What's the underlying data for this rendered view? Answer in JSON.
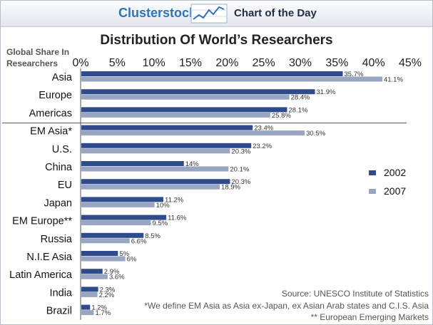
{
  "header": {
    "brand": "Clusterstock",
    "brand_icon": "rising-line-chart-icon",
    "subtitle": "Chart of the Day"
  },
  "chart_data": {
    "type": "bar",
    "orientation": "horizontal",
    "title": "Distribution Of World’s Researchers",
    "ylabel": "Global Share In Researchers",
    "categories": [
      "Asia",
      "Europe",
      "Americas",
      "EM Asia*",
      "U.S.",
      "China",
      "EU",
      "Japan",
      "EM Europe**",
      "Russia",
      "N.I.E Asia",
      "Latin America",
      "India",
      "Brazil"
    ],
    "series": [
      {
        "name": "2002",
        "color": "#2f4b8c",
        "values": [
          35.7,
          31.9,
          28.1,
          23.4,
          23.2,
          14,
          20.3,
          11.2,
          11.6,
          8.5,
          5,
          2.9,
          2.3,
          1.2
        ],
        "labels": [
          "35.7%",
          "31.9%",
          "28.1%",
          "23.4%",
          "23.2%",
          "14%",
          "20.3%",
          "11.2%",
          "11.6%",
          "8.5%",
          "5%",
          "2.9%",
          "2.3%",
          "1.2%"
        ]
      },
      {
        "name": "2007",
        "color": "#99a6c2",
        "values": [
          41.1,
          28.4,
          25.8,
          30.5,
          20.3,
          20.1,
          18.9,
          10,
          9.5,
          6.6,
          6,
          3.6,
          2.2,
          1.7
        ],
        "labels": [
          "41.1%",
          "28.4%",
          "25.8%",
          "30.5%",
          "20.3%",
          "20.1%",
          "18.9%",
          "10%",
          "9.5%",
          "6.6%",
          "6%",
          "3.6%",
          "2.2%",
          "1.7%"
        ]
      }
    ],
    "xlim": [
      0,
      45
    ],
    "xticks": [
      0,
      5,
      10,
      15,
      20,
      25,
      30,
      35,
      40,
      45
    ],
    "xtick_labels": [
      "0%",
      "5%",
      "10%",
      "15%",
      "20%",
      "25%",
      "30%",
      "35%",
      "40%",
      "45%"
    ],
    "x_axis_position": "top",
    "grid": false,
    "legend_position": "right"
  },
  "notes": {
    "source": "Source: UNESCO Institute of Statistics",
    "footnote1": "*We define EM Asia as Asia ex-Japan, ex Asian Arab states and C.I.S. Asia",
    "footnote2": "** European Emerging Markets"
  }
}
